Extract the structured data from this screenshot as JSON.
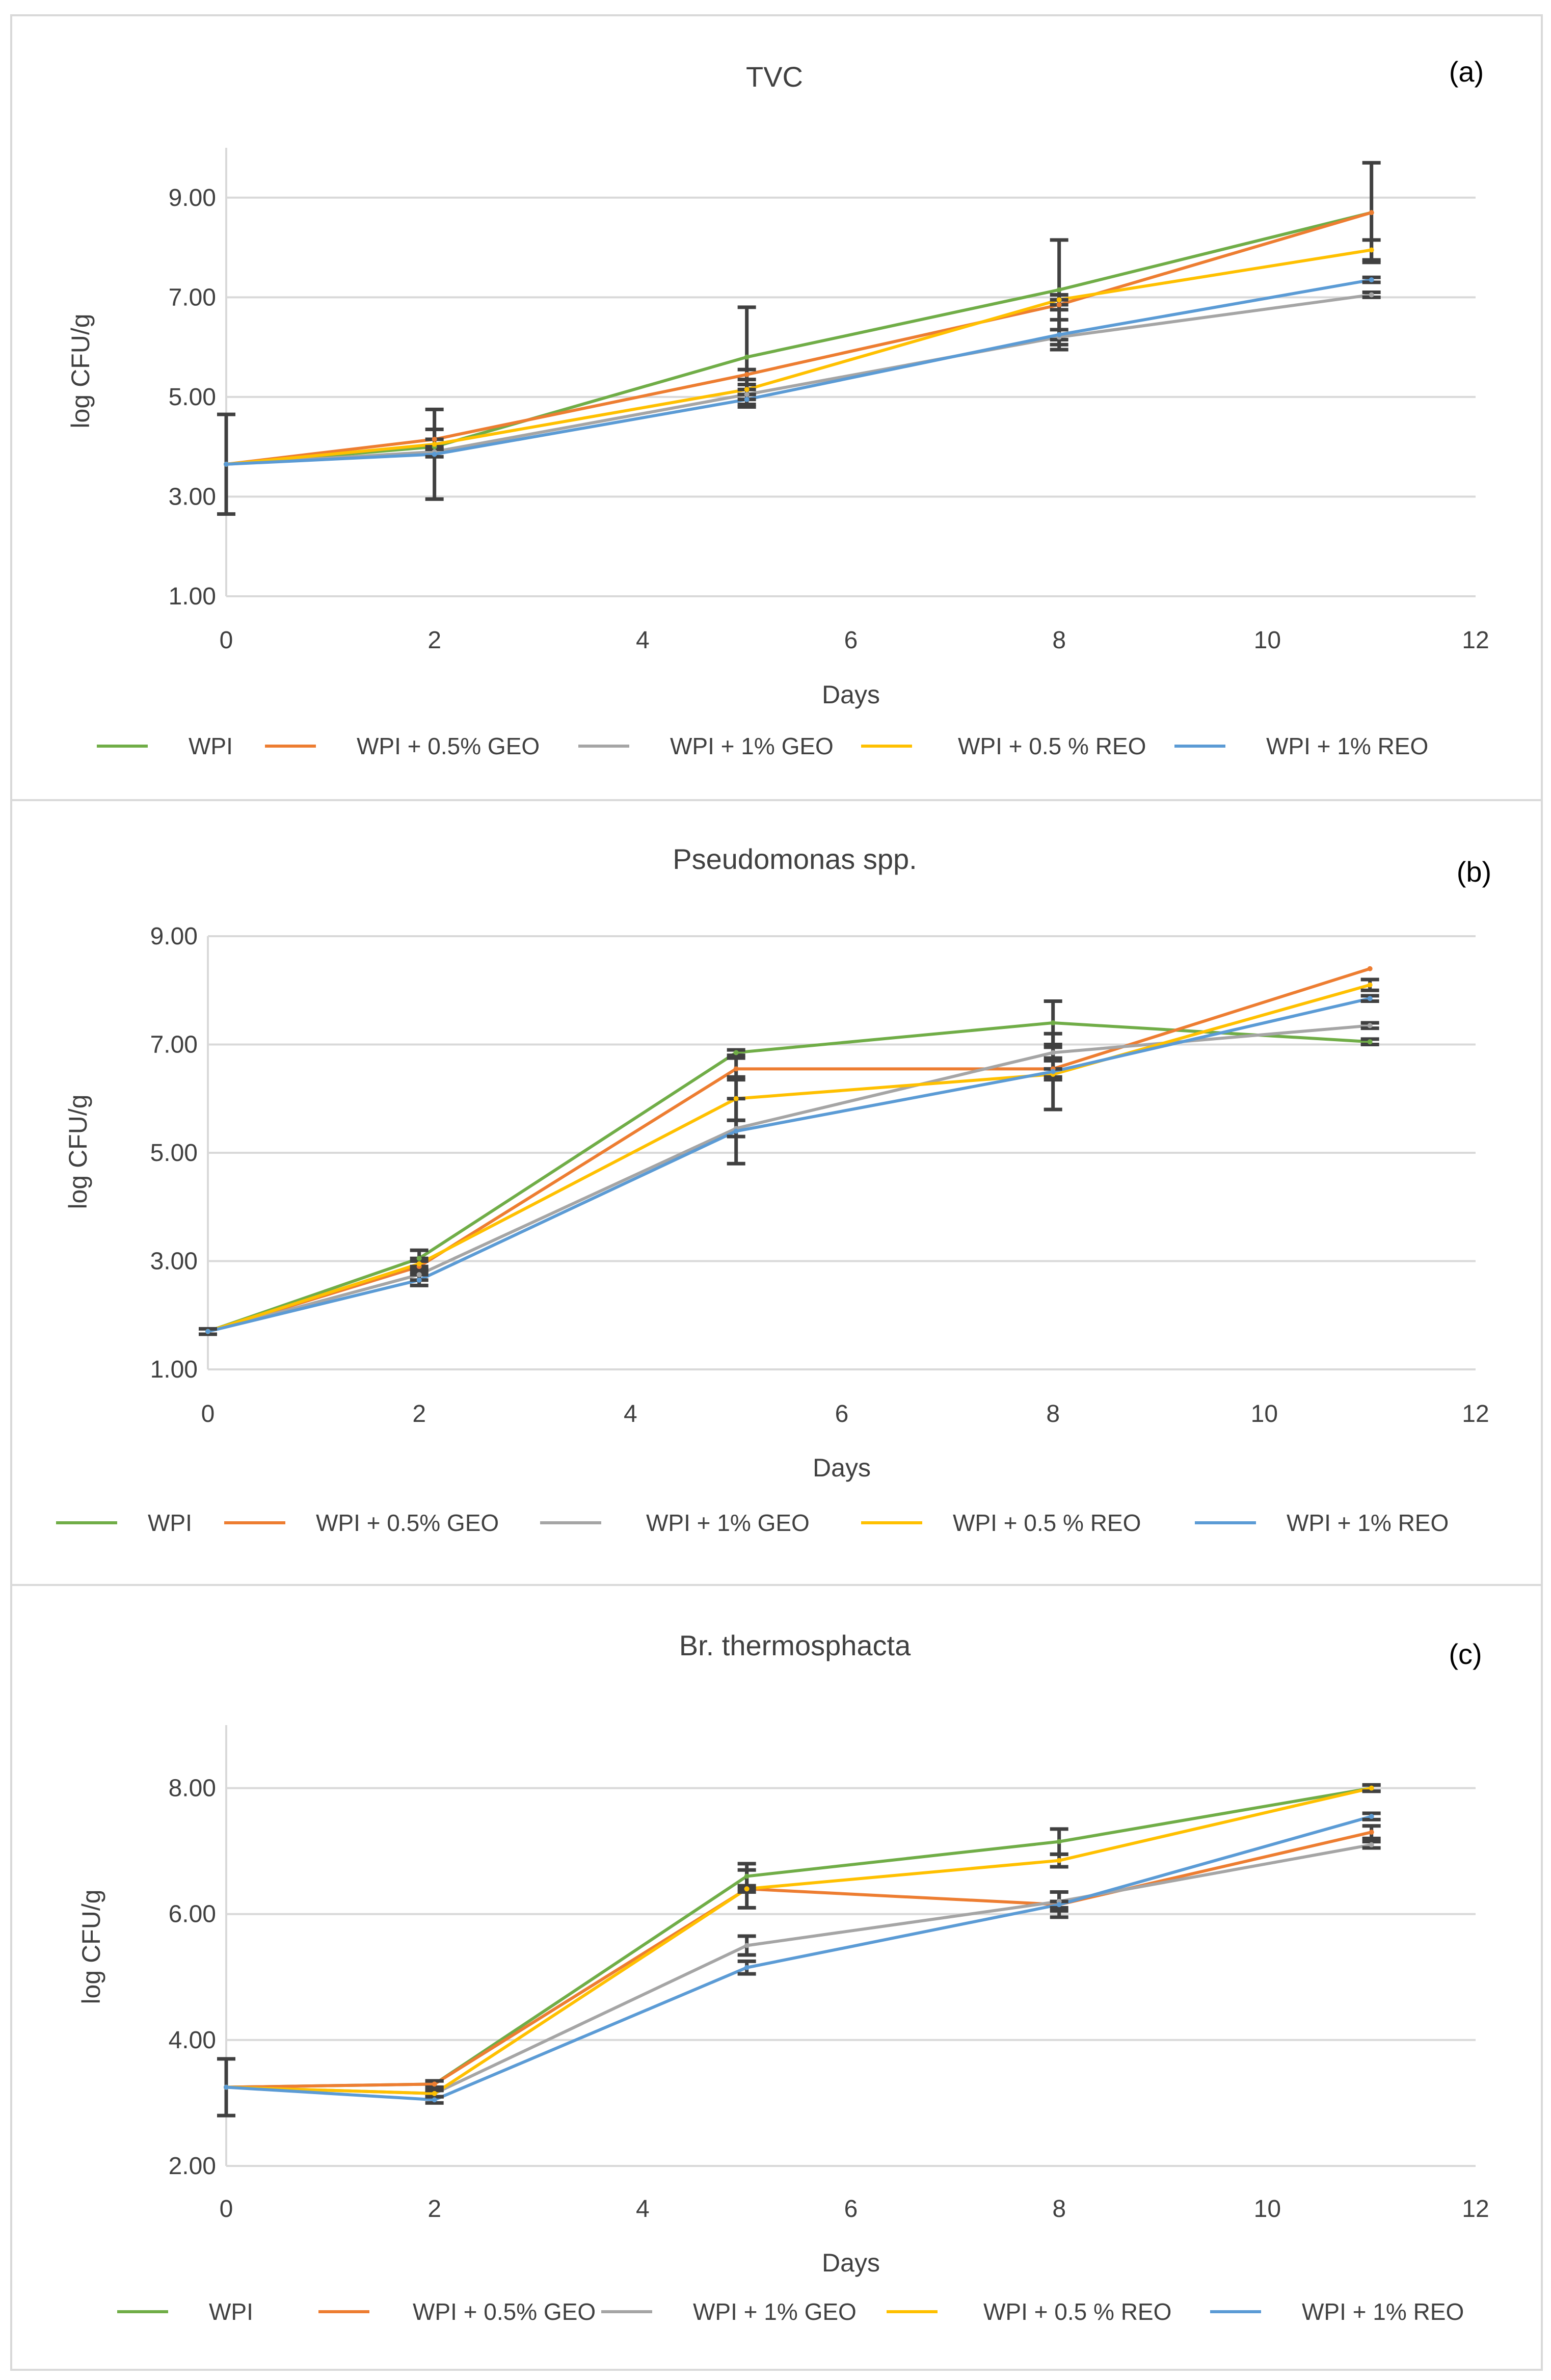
{
  "chart_data": [
    {
      "type": "line",
      "title": "TVC",
      "panel_label": "(a)",
      "xlabel": "Days",
      "ylabel": "log CFU/g",
      "x": [
        0,
        2,
        5,
        8,
        11
      ],
      "xlim": [
        0,
        12
      ],
      "xticks": [
        "0",
        "2",
        "4",
        "6",
        "8",
        "10",
        "12"
      ],
      "ylim": [
        1,
        10
      ],
      "yticks": [
        "1.00",
        "3.00",
        "5.00",
        "7.00",
        "9.00"
      ],
      "series": [
        {
          "name": "WPI",
          "color": "#70AD47",
          "values": [
            3.65,
            4.0,
            5.8,
            7.15,
            8.7
          ],
          "errors": [
            0,
            0,
            1.0,
            1.0,
            1.0
          ]
        },
        {
          "name": "WPI + 0.5% GEO",
          "color": "#ED7D31",
          "values": [
            3.65,
            4.15,
            5.45,
            6.85,
            8.7
          ],
          "errors": [
            0,
            0.2,
            0.1,
            0.1,
            0
          ]
        },
        {
          "name": "WPI + 1% GEO",
          "color": "#A5A5A5",
          "values": [
            3.65,
            3.9,
            5.05,
            6.2,
            7.05
          ],
          "errors": [
            0,
            0.1,
            0.1,
            0.15,
            0.05
          ]
        },
        {
          "name": "WPI + 0.5 % REO",
          "color": "#FFC000",
          "values": [
            3.65,
            4.05,
            5.15,
            6.95,
            7.95
          ],
          "errors": [
            0,
            0.1,
            0.1,
            0.1,
            0.2
          ]
        },
        {
          "name": "WPI + 1% REO",
          "color": "#5B9BD5",
          "values": [
            3.65,
            3.85,
            4.95,
            6.25,
            7.35
          ],
          "errors": [
            1.0,
            0.9,
            0.1,
            0.3,
            0.05
          ]
        }
      ]
    },
    {
      "type": "line",
      "title": "Pseudomonas spp.",
      "panel_label": "(b)",
      "xlabel": "Days",
      "ylabel": "log CFU/g",
      "x": [
        0,
        2,
        5,
        8,
        11
      ],
      "xlim": [
        0,
        12
      ],
      "xticks": [
        "0",
        "2",
        "4",
        "6",
        "8",
        "10",
        "12"
      ],
      "ylim": [
        1,
        9
      ],
      "yticks": [
        "1.00",
        "3.00",
        "5.00",
        "7.00",
        "9.00"
      ],
      "series": [
        {
          "name": "WPI",
          "color": "#70AD47",
          "values": [
            1.7,
            3.05,
            6.85,
            7.4,
            7.05
          ],
          "errors": [
            0,
            0.15,
            0.05,
            0.4,
            0.05
          ]
        },
        {
          "name": "WPI + 0.5% GEO",
          "color": "#ED7D31",
          "values": [
            1.7,
            2.9,
            6.55,
            6.55,
            8.4
          ],
          "errors": [
            0,
            0.1,
            0.2,
            0.15,
            0
          ]
        },
        {
          "name": "WPI + 1% GEO",
          "color": "#A5A5A5",
          "values": [
            1.7,
            2.75,
            5.45,
            6.85,
            7.35
          ],
          "errors": [
            0,
            0.1,
            0.15,
            0.1,
            0.05
          ]
        },
        {
          "name": "WPI + 0.5 % REO",
          "color": "#FFC000",
          "values": [
            1.7,
            2.95,
            6.0,
            6.45,
            8.1
          ],
          "errors": [
            0,
            0.1,
            0.4,
            0.1,
            0.1
          ]
        },
        {
          "name": "WPI + 1% REO",
          "color": "#5B9BD5",
          "values": [
            1.7,
            2.65,
            5.4,
            6.5,
            7.85
          ],
          "errors": [
            0.05,
            0.1,
            0.6,
            0.7,
            0.05
          ]
        }
      ]
    },
    {
      "type": "line",
      "title": "Br. thermosphacta",
      "panel_label": "(c)",
      "xlabel": "Days",
      "ylabel": "log CFU/g",
      "x": [
        0,
        2,
        5,
        8,
        11
      ],
      "xlim": [
        0,
        12
      ],
      "xticks": [
        "0",
        "2",
        "4",
        "6",
        "8",
        "10",
        "12"
      ],
      "ylim": [
        2,
        9
      ],
      "yticks": [
        "2.00",
        "4.00",
        "6.00",
        "8.00"
      ],
      "series": [
        {
          "name": "WPI",
          "color": "#70AD47",
          "values": [
            3.25,
            3.3,
            6.6,
            7.15,
            8.0
          ],
          "errors": [
            0,
            0.05,
            0.2,
            0.2,
            0.05
          ]
        },
        {
          "name": "WPI + 0.5% GEO",
          "color": "#ED7D31",
          "values": [
            3.25,
            3.3,
            6.4,
            6.15,
            7.3
          ],
          "errors": [
            0,
            0.05,
            0.3,
            0.05,
            0.1
          ]
        },
        {
          "name": "WPI + 1% GEO",
          "color": "#A5A5A5",
          "values": [
            3.25,
            3.15,
            5.5,
            6.2,
            7.1
          ],
          "errors": [
            0,
            0.05,
            0.15,
            0.15,
            0.05
          ]
        },
        {
          "name": "WPI + 0.5 % REO",
          "color": "#FFC000",
          "values": [
            3.25,
            3.15,
            6.4,
            6.85,
            8.0
          ],
          "errors": [
            0,
            0.05,
            0.05,
            0.1,
            0.05
          ]
        },
        {
          "name": "WPI + 1% REO",
          "color": "#5B9BD5",
          "values": [
            3.25,
            3.05,
            5.15,
            6.15,
            7.55
          ],
          "errors": [
            0.45,
            0.05,
            0.1,
            0.2,
            0.05
          ]
        }
      ]
    }
  ]
}
